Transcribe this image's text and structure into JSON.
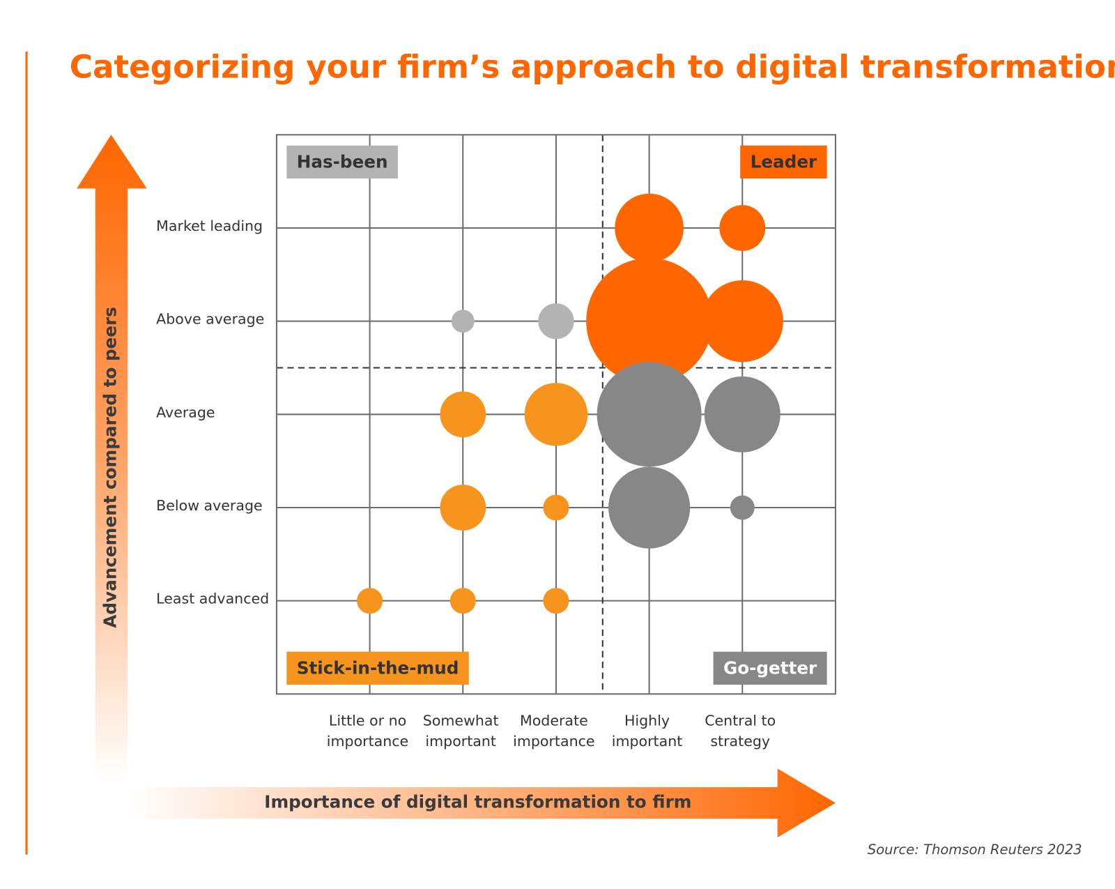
{
  "chart_data": {
    "type": "bubble",
    "title": "Categorizing your firm’s approach to digital transformation",
    "x_axis_title": "Importance of digital transformation to firm",
    "y_axis_title": "Advancement compared to peers",
    "source": "Source: Thomson Reuters 2023",
    "x_categories": [
      [
        "Little or no",
        "importance"
      ],
      [
        "Somewhat",
        "important"
      ],
      [
        "Moderate",
        "importance"
      ],
      [
        "Highly",
        "important"
      ],
      [
        "Central to",
        "strategy"
      ]
    ],
    "y_categories": [
      "Least advanced",
      "Below average",
      "Average",
      "Above average",
      "Market leading"
    ],
    "xlim": [
      -1,
      5
    ],
    "ylim": [
      -1,
      5
    ],
    "xticks": [
      0,
      1,
      2,
      3,
      4
    ],
    "yticks": [
      0,
      1,
      2,
      3,
      4
    ],
    "dividers": {
      "x": 2.5,
      "y": 2.5
    },
    "series": [
      {
        "name": "Leader",
        "color": "#ff6600",
        "label_color": "#333333",
        "corner": "top-right",
        "x": [
          3,
          4,
          3,
          4
        ],
        "y": [
          4,
          4,
          3,
          3
        ],
        "sizes": [
          96,
          64,
          176,
          114
        ]
      },
      {
        "name": "Has-been",
        "color": "#b3b3b3",
        "label_color": "#333333",
        "corner": "top-left",
        "x": [
          1,
          2
        ],
        "y": [
          3,
          3
        ],
        "sizes": [
          32,
          50
        ]
      },
      {
        "name": "Stick-in-the-mud",
        "color": "#f7941d",
        "label_color": "#333333",
        "corner": "bottom-left",
        "x": [
          1,
          2,
          1,
          2,
          0,
          1,
          2
        ],
        "y": [
          2,
          2,
          1,
          1,
          0,
          0,
          0
        ],
        "sizes": [
          64,
          88,
          64,
          36,
          36,
          36,
          36
        ]
      },
      {
        "name": "Go-getter",
        "color": "#878787",
        "label_color": "#ffffff",
        "corner": "bottom-right",
        "x": [
          3,
          4,
          3,
          4
        ],
        "y": [
          2,
          2,
          1,
          1
        ],
        "sizes": [
          146,
          106,
          114,
          34
        ]
      }
    ]
  }
}
